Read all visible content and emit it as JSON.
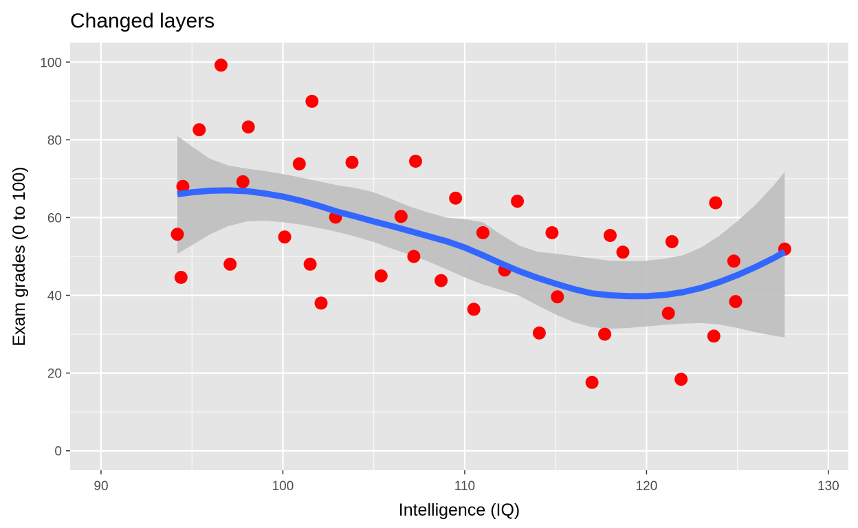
{
  "chart_data": {
    "type": "scatter",
    "title": "Changed layers",
    "xlabel": "Intelligence (IQ)",
    "ylabel": "Exam grades (0 to 100)",
    "xlim": [
      88.3,
      131.1
    ],
    "ylim": [
      -5,
      105
    ],
    "x_ticks": [
      90,
      100,
      110,
      120,
      130
    ],
    "x_tick_labels": [
      "90",
      "100",
      "110",
      "120",
      "130"
    ],
    "y_ticks": [
      0,
      20,
      40,
      60,
      80,
      100
    ],
    "y_tick_labels": [
      "0",
      "20",
      "40",
      "60",
      "80",
      "100"
    ],
    "grid": true,
    "legend": "none",
    "colors": {
      "panel_background": "#e5e5e5",
      "grid_line": "#ffffff",
      "point": "#ff0000",
      "smooth_line": "#3366ff",
      "confidence_band": "#bebebe"
    },
    "points": [
      {
        "x": 94.2,
        "y": 55.7
      },
      {
        "x": 94.4,
        "y": 44.6
      },
      {
        "x": 94.5,
        "y": 68.0
      },
      {
        "x": 95.4,
        "y": 82.6
      },
      {
        "x": 96.6,
        "y": 99.2
      },
      {
        "x": 97.1,
        "y": 48.0
      },
      {
        "x": 97.8,
        "y": 69.2
      },
      {
        "x": 98.1,
        "y": 83.3
      },
      {
        "x": 100.1,
        "y": 55.0
      },
      {
        "x": 100.9,
        "y": 73.8
      },
      {
        "x": 101.5,
        "y": 48.0
      },
      {
        "x": 101.6,
        "y": 89.9
      },
      {
        "x": 102.1,
        "y": 38.0
      },
      {
        "x": 102.9,
        "y": 60.1
      },
      {
        "x": 103.8,
        "y": 74.2
      },
      {
        "x": 105.4,
        "y": 45.0
      },
      {
        "x": 106.5,
        "y": 60.3
      },
      {
        "x": 107.2,
        "y": 50.0
      },
      {
        "x": 107.3,
        "y": 74.5
      },
      {
        "x": 108.7,
        "y": 43.8
      },
      {
        "x": 109.5,
        "y": 65.0
      },
      {
        "x": 110.5,
        "y": 36.4
      },
      {
        "x": 111.0,
        "y": 56.1
      },
      {
        "x": 112.2,
        "y": 46.5
      },
      {
        "x": 112.9,
        "y": 64.2
      },
      {
        "x": 114.1,
        "y": 30.3
      },
      {
        "x": 114.8,
        "y": 56.1
      },
      {
        "x": 115.1,
        "y": 39.6
      },
      {
        "x": 117.0,
        "y": 17.6
      },
      {
        "x": 117.7,
        "y": 30.0
      },
      {
        "x": 118.0,
        "y": 55.4
      },
      {
        "x": 118.7,
        "y": 51.1
      },
      {
        "x": 121.2,
        "y": 35.4
      },
      {
        "x": 121.4,
        "y": 53.8
      },
      {
        "x": 121.9,
        "y": 18.4
      },
      {
        "x": 123.7,
        "y": 29.5
      },
      {
        "x": 123.8,
        "y": 63.8
      },
      {
        "x": 124.8,
        "y": 48.8
      },
      {
        "x": 124.9,
        "y": 38.4
      },
      {
        "x": 127.6,
        "y": 51.9
      }
    ],
    "smooth": {
      "x": [
        94.2,
        95.0,
        96.0,
        97.0,
        98.0,
        99.0,
        100.0,
        101.0,
        102.0,
        103.0,
        104.0,
        105.0,
        106.0,
        107.0,
        108.0,
        109.0,
        110.0,
        111.0,
        112.0,
        113.0,
        114.0,
        115.0,
        116.0,
        117.0,
        118.0,
        119.0,
        120.0,
        121.0,
        122.0,
        123.0,
        124.0,
        125.0,
        126.0,
        127.0,
        127.6
      ],
      "y": [
        66.0,
        66.5,
        66.9,
        67.0,
        66.8,
        66.2,
        65.4,
        64.3,
        63.0,
        61.5,
        60.3,
        59.0,
        57.8,
        56.5,
        55.2,
        53.9,
        52.3,
        50.3,
        48.2,
        46.2,
        44.5,
        43.0,
        41.6,
        40.5,
        40.0,
        39.8,
        39.8,
        40.1,
        40.8,
        41.9,
        43.4,
        45.2,
        47.3,
        49.6,
        51.2
      ],
      "lower": [
        50.7,
        52.9,
        55.7,
        57.8,
        59.0,
        59.2,
        58.8,
        58.2,
        57.3,
        56.3,
        55.1,
        53.7,
        52.0,
        50.4,
        48.7,
        46.7,
        44.6,
        42.8,
        41.4,
        39.9,
        37.4,
        35.1,
        33.1,
        31.8,
        31.4,
        31.6,
        32.0,
        32.4,
        32.7,
        32.9,
        32.5,
        31.6,
        30.5,
        29.6,
        29.2
      ],
      "upper": [
        81.0,
        78.3,
        75.1,
        73.4,
        72.6,
        72.0,
        71.2,
        70.3,
        69.3,
        68.3,
        67.6,
        66.5,
        64.7,
        62.8,
        61.3,
        60.0,
        59.6,
        58.8,
        55.6,
        52.8,
        51.2,
        50.7,
        50.1,
        49.5,
        48.9,
        48.8,
        48.9,
        49.4,
        50.3,
        52.3,
        55.3,
        59.1,
        63.3,
        68.3,
        71.8
      ]
    }
  }
}
